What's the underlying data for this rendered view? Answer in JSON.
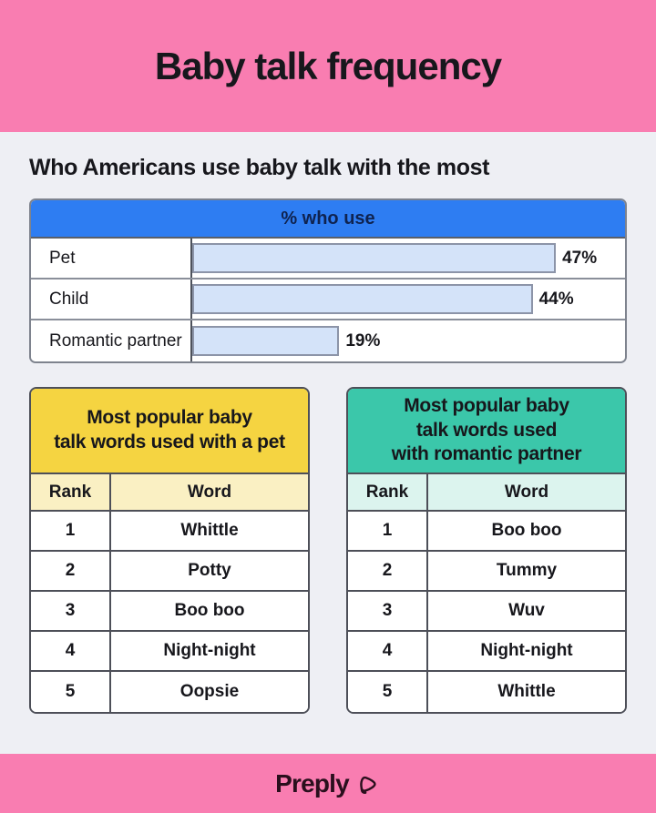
{
  "header": {
    "title": "Baby talk frequency",
    "bg_color": "#f97db1"
  },
  "section": {
    "heading": "Who Americans use baby talk with the most"
  },
  "chart_data": {
    "type": "bar",
    "orientation": "horizontal",
    "title": "% who use",
    "categories": [
      "Pet",
      "Child",
      "Romantic partner"
    ],
    "values": [
      47,
      44,
      19
    ],
    "value_labels": [
      "47%",
      "44%",
      "19%"
    ],
    "xlim": [
      0,
      55
    ],
    "grid": false,
    "legend": "none",
    "header_bg": "#2e7df2",
    "bar_color": "#d4e3f9",
    "bar_border_color": "#8c94a8"
  },
  "tables": [
    {
      "title": "Most popular baby\ntalk words used with a pet",
      "accent": "#f5d441",
      "accent_light": "#faf0c3",
      "columns": [
        "Rank",
        "Word"
      ],
      "rows": [
        [
          "1",
          "Whittle"
        ],
        [
          "2",
          "Potty"
        ],
        [
          "3",
          "Boo boo"
        ],
        [
          "4",
          "Night-night"
        ],
        [
          "5",
          "Oopsie"
        ]
      ]
    },
    {
      "title": "Most popular baby\ntalk words used\nwith romantic partner",
      "accent": "#3bc7aa",
      "accent_light": "#dcf4ee",
      "columns": [
        "Rank",
        "Word"
      ],
      "rows": [
        [
          "1",
          "Boo boo"
        ],
        [
          "2",
          "Tummy"
        ],
        [
          "3",
          "Wuv"
        ],
        [
          "4",
          "Night-night"
        ],
        [
          "5",
          "Whittle"
        ]
      ]
    }
  ],
  "footer": {
    "brand": "Preply",
    "logo_icon": "preply-arrow-icon"
  }
}
